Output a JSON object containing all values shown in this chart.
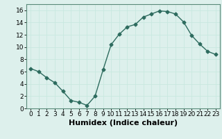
{
  "x": [
    0,
    1,
    2,
    3,
    4,
    5,
    6,
    7,
    8,
    9,
    10,
    11,
    12,
    13,
    14,
    15,
    16,
    17,
    18,
    19,
    20,
    21,
    22,
    23
  ],
  "y": [
    6.5,
    6.0,
    5.0,
    4.2,
    2.8,
    1.3,
    1.0,
    0.5,
    2.0,
    6.3,
    10.4,
    12.1,
    13.3,
    13.7,
    14.9,
    15.4,
    15.9,
    15.8,
    15.4,
    14.1,
    11.9,
    10.5,
    9.3,
    8.8
  ],
  "line_color": "#2d6b5e",
  "marker": "D",
  "marker_size": 2.5,
  "line_width": 1.0,
  "xlabel": "Humidex (Indice chaleur)",
  "xlabel_fontsize": 8,
  "xlabel_weight": "bold",
  "ylim": [
    0,
    17
  ],
  "xlim": [
    -0.5,
    23.5
  ],
  "yticks": [
    0,
    2,
    4,
    6,
    8,
    10,
    12,
    14,
    16
  ],
  "xticks": [
    0,
    1,
    2,
    3,
    4,
    5,
    6,
    7,
    8,
    9,
    10,
    11,
    12,
    13,
    14,
    15,
    16,
    17,
    18,
    19,
    20,
    21,
    22,
    23
  ],
  "xtick_labels": [
    "0",
    "1",
    "2",
    "3",
    "4",
    "5",
    "6",
    "7",
    "8",
    "9",
    "10",
    "11",
    "12",
    "13",
    "14",
    "15",
    "16",
    "17",
    "18",
    "19",
    "20",
    "21",
    "22",
    "23"
  ],
  "grid_color": "#c8e8e0",
  "background_color": "#ddf0ec",
  "tick_fontsize": 6.5,
  "spine_color": "#5a8a7a"
}
